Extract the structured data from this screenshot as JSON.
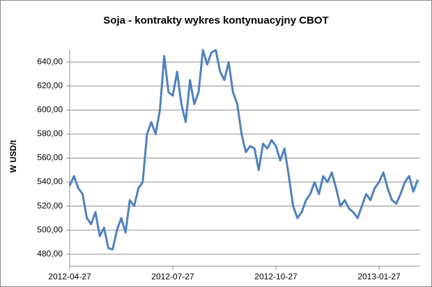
{
  "chart_data": {
    "type": "line",
    "title": "Soja - kontrakty wykres kontynuacyjny CBOT",
    "y_label": "W USD/t",
    "categories": [
      "2012-04-27",
      null,
      null,
      null,
      null,
      null,
      null,
      null,
      null,
      null,
      null,
      null,
      null,
      null,
      null,
      null,
      null,
      null,
      null,
      null,
      null,
      null,
      null,
      null,
      "2012-07-27",
      null,
      null,
      null,
      null,
      null,
      null,
      null,
      null,
      null,
      null,
      null,
      null,
      null,
      null,
      null,
      null,
      null,
      null,
      null,
      null,
      null,
      null,
      null,
      "2012-10-27",
      null,
      null,
      null,
      null,
      null,
      null,
      null,
      null,
      null,
      null,
      null,
      null,
      null,
      null,
      null,
      null,
      null,
      null,
      null,
      null,
      null,
      null,
      null,
      "2013-01-27",
      null,
      null,
      null,
      null,
      null,
      null,
      null,
      null,
      null
    ],
    "values": [
      537,
      545,
      535,
      530,
      510,
      505,
      515,
      495,
      502,
      485,
      484,
      500,
      510,
      498,
      525,
      520,
      535,
      540,
      580,
      590,
      580,
      600,
      645,
      615,
      612,
      632,
      605,
      590,
      625,
      605,
      615,
      650,
      638,
      648,
      650,
      632,
      625,
      640,
      615,
      605,
      580,
      565,
      570,
      568,
      550,
      572,
      568,
      575,
      570,
      558,
      568,
      545,
      520,
      510,
      515,
      525,
      530,
      540,
      530,
      545,
      540,
      548,
      535,
      520,
      525,
      518,
      515,
      510,
      520,
      530,
      525,
      535,
      540,
      548,
      535,
      525,
      522,
      530,
      540,
      545,
      532,
      542
    ],
    "color": "#4f81bd",
    "ylim": [
      470,
      650
    ],
    "yticks": [
      {
        "value": 480,
        "label": "480,00"
      },
      {
        "value": 500,
        "label": "500,00"
      },
      {
        "value": 520,
        "label": "520,00"
      },
      {
        "value": 540,
        "label": "540,00"
      },
      {
        "value": 560,
        "label": "560,00"
      },
      {
        "value": 580,
        "label": "580,00"
      },
      {
        "value": 600,
        "label": "600,00"
      },
      {
        "value": 620,
        "label": "620,00"
      },
      {
        "value": 640,
        "label": "640,00"
      }
    ],
    "grid": true
  }
}
